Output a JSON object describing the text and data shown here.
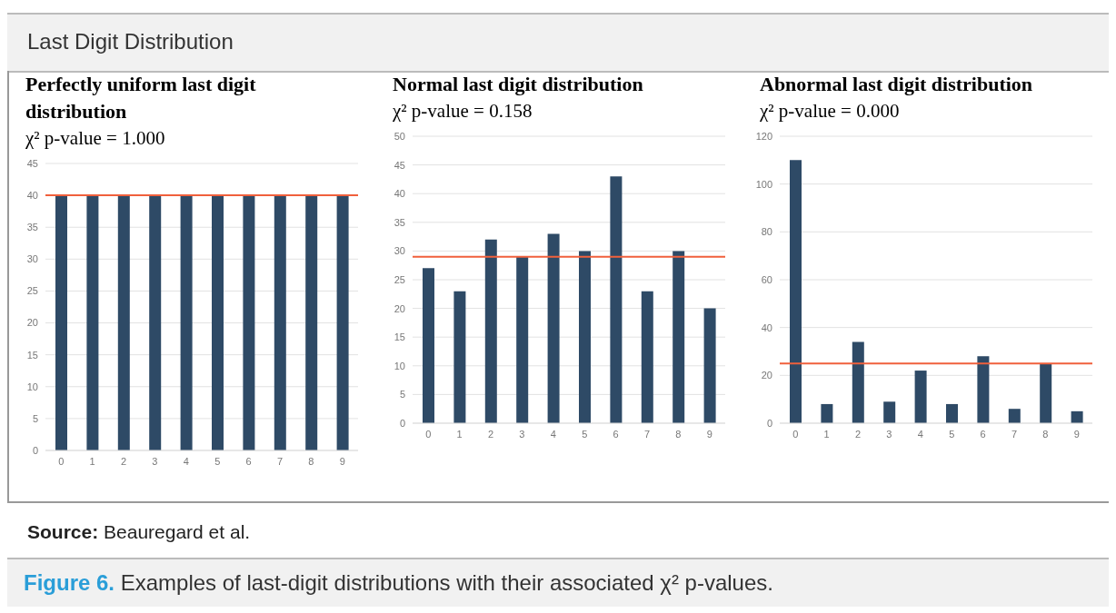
{
  "chart_data": [
    {
      "type": "bar",
      "title": "Perfectly uniform last digit distribution",
      "subtitle": "χ² p-value = 1.000",
      "categories": [
        "0",
        "1",
        "2",
        "3",
        "4",
        "5",
        "6",
        "7",
        "8",
        "9"
      ],
      "values": [
        40,
        40,
        40,
        40,
        40,
        40,
        40,
        40,
        40,
        40
      ],
      "color": "#2e4a66",
      "ylim": [
        0,
        45
      ],
      "yticks": [
        0,
        5,
        10,
        15,
        20,
        25,
        30,
        35,
        40,
        45
      ],
      "grid": "y",
      "ref_lines": [
        {
          "axis": "y",
          "value": 40,
          "color": "#f0603c"
        }
      ],
      "annotations": [
        "Last Digit Distribution",
        "Source: Beauregard et al.",
        "Figure 6. Examples of last-digit distributions with their associated χ² p-values."
      ]
    },
    {
      "type": "bar",
      "title": "Normal last digit distribution",
      "subtitle": "χ² p-value = 0.158",
      "categories": [
        "0",
        "1",
        "2",
        "3",
        "4",
        "5",
        "6",
        "7",
        "8",
        "9"
      ],
      "values": [
        27,
        23,
        32,
        29,
        33,
        30,
        43,
        23,
        30,
        20
      ],
      "color": "#2e4a66",
      "ylim": [
        0,
        50
      ],
      "yticks": [
        0,
        5,
        10,
        15,
        20,
        25,
        30,
        35,
        40,
        45,
        50
      ],
      "grid": "y",
      "ref_lines": [
        {
          "axis": "y",
          "value": 29,
          "color": "#f0603c"
        }
      ]
    },
    {
      "type": "bar",
      "title": "Abnormal last digit distribution",
      "subtitle": "χ² p-value = 0.000",
      "categories": [
        "0",
        "1",
        "2",
        "3",
        "4",
        "5",
        "6",
        "7",
        "8",
        "9"
      ],
      "values": [
        110,
        8,
        34,
        9,
        22,
        8,
        28,
        6,
        25,
        5
      ],
      "color": "#2e4a66",
      "ylim": [
        0,
        120
      ],
      "yticks": [
        0,
        20,
        40,
        60,
        80,
        100,
        120
      ],
      "grid": "y",
      "ref_lines": [
        {
          "axis": "y",
          "value": 25,
          "color": "#f0603c"
        }
      ]
    }
  ]
}
